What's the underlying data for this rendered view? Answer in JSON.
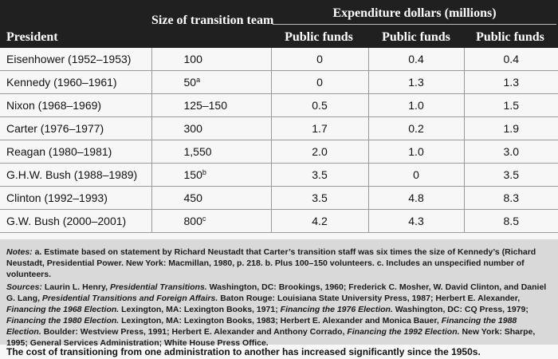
{
  "header": {
    "president": "President",
    "size": "Size of transition team",
    "expenditure": "Expenditure dollars (millions)",
    "cols": [
      "Public funds",
      "Public funds",
      "Public funds"
    ]
  },
  "rows": [
    {
      "president": "Eisenhower (1952–1953)",
      "size": "100",
      "note": "",
      "c1": "0",
      "c2": "0.4",
      "c3": "0.4"
    },
    {
      "president": "Kennedy (1960–1961)",
      "size": "50",
      "note": "a",
      "c1": "0",
      "c2": "1.3",
      "c3": "1.3"
    },
    {
      "president": "Nixon (1968–1969)",
      "size": "125–150",
      "note": "",
      "c1": "0.5",
      "c2": "1.0",
      "c3": "1.5"
    },
    {
      "president": "Carter (1976–1977)",
      "size": "300",
      "note": "",
      "c1": "1.7",
      "c2": "0.2",
      "c3": "1.9"
    },
    {
      "president": "Reagan (1980–1981)",
      "size": "1,550",
      "note": "",
      "c1": "2.0",
      "c2": "1.0",
      "c3": "3.0"
    },
    {
      "president": "G.H.W. Bush (1988–1989)",
      "size": "150",
      "note": "b",
      "c1": "3.5",
      "c2": "0",
      "c3": "3.5"
    },
    {
      "president": "Clinton (1992–1993)",
      "size": "450",
      "note": "",
      "c1": "3.5",
      "c2": "4.8",
      "c3": "8.3"
    },
    {
      "president": "G.W. Bush (2000–2001)",
      "size": "800",
      "note": "c",
      "c1": "4.2",
      "c2": "4.3",
      "c3": "8.5"
    }
  ],
  "notes": {
    "label": "Notes:",
    "text": "a. Estimate based on statement by Richard Neustadt that Carter’s transition staff was six times the size of Kennedy’s (Richard Neustadt, Presidential Power. New York: Macmillan, 1980, p. 218. b. Plus 100–150 volunteers. c. Includes an unspecified number of volunteers."
  },
  "sources": {
    "label": "Sources:",
    "s1": "Laurin L. Henry,",
    "t1": "Presidential Transitions.",
    "s2": "Washington, DC: Brookings, 1960; Frederick C. Mosher, W. David Clinton, and Daniel G. Lang,",
    "t2": "Presidential Transitions and Foreign Affairs.",
    "s3": "Baton Rouge: Louisiana State University Press, 1987; Herbert E. Alexander,",
    "t3": "Financing the 1968 Election.",
    "s4": "Lexington, MA: Lexington Books, 1971;",
    "t4": "Financing the 1976 Election.",
    "s5": "Washington, DC: CQ Press, 1979;",
    "t5": "Financing the 1980 Election.",
    "s6": "Lexington, MA: Lexington Books, 1983; Herbert E. Alexander and Monica Bauer,",
    "t6": "Financing the 1988 Election.",
    "s7": "Boulder: Westview Press, 1991; Herbert E. Alexander and Anthony Corrado,",
    "t7": "Financing the 1992 Election.",
    "s8": "New York: Sharpe, 1995; General Services Administration; White House Press Office."
  },
  "caption": "The cost of transitioning from one administration to another has increased significantly since the 1950s."
}
